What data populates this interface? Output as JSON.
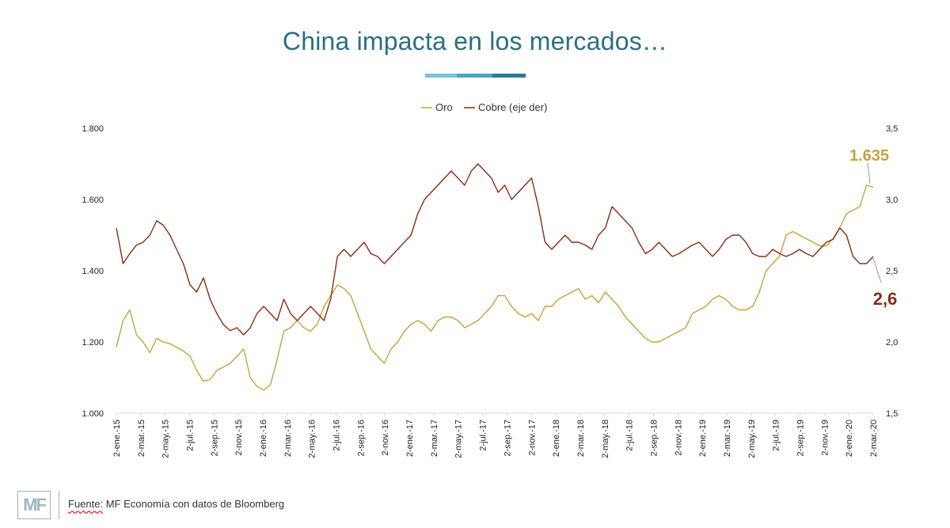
{
  "header": {
    "title": "China impacta en los mercados…"
  },
  "footer": {
    "logo_text": "MF",
    "source_prefix": "Fuente:",
    "source_rest": " MF Economía con datos de Bloomberg"
  },
  "colors": {
    "gold": "#c9a239",
    "copper": "#8b2d10",
    "axis_text": "#222222",
    "title": "#2b6f86"
  },
  "chart_data": {
    "type": "line",
    "title": "China impacta en los mercados…",
    "legend": [
      "Oro",
      "Cobre (eje der)"
    ],
    "legend_position": "top-center",
    "y_left": {
      "label": "",
      "range": [
        1000,
        1800
      ],
      "ticks": [
        "1.000",
        "1.200",
        "1.400",
        "1.600",
        "1.800"
      ]
    },
    "y_right": {
      "label": "",
      "range": [
        1.5,
        3.5
      ],
      "ticks": [
        "1,5",
        "2,0",
        "2,5",
        "3,0",
        "3,5"
      ]
    },
    "x_labels": [
      "2-ene.-15",
      "2-mar.-15",
      "2-may.-15",
      "2-jul.-15",
      "2-sep.-15",
      "2-nov.-15",
      "2-ene.-16",
      "2-mar.-16",
      "2-may.-16",
      "2-jul.-16",
      "2-sep.-16",
      "2-nov.-16",
      "2-ene.-17",
      "2-mar.-17",
      "2-may.-17",
      "2-jul.-17",
      "2-sep.-17",
      "2-nov.-17",
      "2-ene.-18",
      "2-mar.-18",
      "2-may.-18",
      "2-jul.-18",
      "2-sep.-18",
      "2-nov.-18",
      "2-ene.-19",
      "2-mar.-19",
      "2-may.-19",
      "2-jul.-19",
      "2-sep.-19",
      "2-nov.-19",
      "2-ene.-20",
      "2-mar.-20"
    ],
    "series": [
      {
        "name": "Oro",
        "axis": "left",
        "color": "#c9a239",
        "values": [
          1185,
          1260,
          1290,
          1220,
          1200,
          1170,
          1210,
          1200,
          1195,
          1185,
          1175,
          1160,
          1120,
          1090,
          1095,
          1120,
          1130,
          1140,
          1160,
          1180,
          1100,
          1075,
          1065,
          1080,
          1150,
          1230,
          1240,
          1260,
          1240,
          1230,
          1250,
          1300,
          1330,
          1360,
          1350,
          1330,
          1280,
          1230,
          1180,
          1160,
          1140,
          1180,
          1200,
          1230,
          1250,
          1260,
          1250,
          1230,
          1260,
          1270,
          1270,
          1260,
          1240,
          1250,
          1260,
          1280,
          1300,
          1330,
          1330,
          1300,
          1280,
          1270,
          1280,
          1260,
          1300,
          1300,
          1320,
          1330,
          1340,
          1350,
          1320,
          1330,
          1310,
          1340,
          1320,
          1300,
          1270,
          1250,
          1230,
          1210,
          1200,
          1200,
          1210,
          1220,
          1230,
          1240,
          1280,
          1290,
          1300,
          1320,
          1330,
          1320,
          1300,
          1290,
          1290,
          1300,
          1340,
          1400,
          1420,
          1440,
          1500,
          1510,
          1500,
          1490,
          1480,
          1470,
          1470,
          1490,
          1520,
          1560,
          1570,
          1580,
          1640,
          1635
        ]
      },
      {
        "name": "Cobre (eje der)",
        "axis": "right",
        "color": "#8b2d10",
        "values": [
          2.8,
          2.55,
          2.62,
          2.68,
          2.7,
          2.75,
          2.85,
          2.82,
          2.75,
          2.65,
          2.55,
          2.4,
          2.35,
          2.45,
          2.3,
          2.2,
          2.12,
          2.08,
          2.1,
          2.05,
          2.1,
          2.2,
          2.25,
          2.2,
          2.15,
          2.3,
          2.2,
          2.15,
          2.2,
          2.25,
          2.2,
          2.15,
          2.3,
          2.6,
          2.65,
          2.6,
          2.65,
          2.7,
          2.62,
          2.6,
          2.55,
          2.6,
          2.65,
          2.7,
          2.75,
          2.9,
          3.0,
          3.05,
          3.1,
          3.15,
          3.2,
          3.15,
          3.1,
          3.2,
          3.25,
          3.2,
          3.15,
          3.05,
          3.1,
          3.0,
          3.05,
          3.1,
          3.15,
          2.95,
          2.7,
          2.65,
          2.7,
          2.75,
          2.7,
          2.7,
          2.68,
          2.65,
          2.75,
          2.8,
          2.95,
          2.9,
          2.85,
          2.8,
          2.7,
          2.62,
          2.65,
          2.7,
          2.65,
          2.6,
          2.62,
          2.65,
          2.68,
          2.7,
          2.65,
          2.6,
          2.65,
          2.72,
          2.75,
          2.75,
          2.7,
          2.62,
          2.6,
          2.6,
          2.65,
          2.62,
          2.6,
          2.62,
          2.65,
          2.62,
          2.6,
          2.65,
          2.7,
          2.72,
          2.8,
          2.75,
          2.6,
          2.55,
          2.55,
          2.6
        ]
      }
    ],
    "annotations": [
      {
        "text": "1.635",
        "series": "Oro",
        "color": "#c9a239"
      },
      {
        "text": "2,6",
        "series": "Cobre (eje der)",
        "color": "#8b2d10"
      }
    ]
  }
}
